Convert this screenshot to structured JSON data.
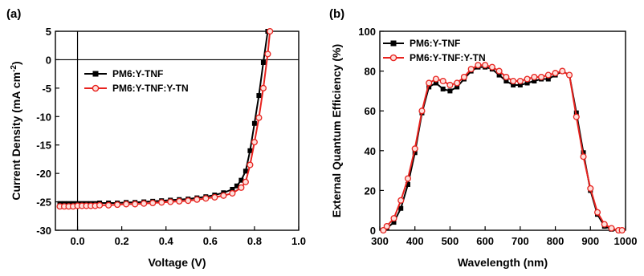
{
  "chart_data": [
    {
      "panel_label": "(a)",
      "type": "line",
      "xlabel": "Voltage (V)",
      "ylabel_parts": [
        "Current Density (mA cm",
        "-2",
        ")"
      ],
      "xlim": [
        -0.1,
        1.0
      ],
      "ylim": [
        -30,
        5
      ],
      "xticks": [
        0.0,
        0.2,
        0.4,
        0.6,
        0.8,
        1.0
      ],
      "xtick_labels": [
        "0.0",
        "0.2",
        "0.4",
        "0.6",
        "0.8",
        "1.0"
      ],
      "yticks": [
        5,
        0,
        -5,
        -10,
        -15,
        -20,
        -25,
        -30
      ],
      "ytick_labels": [
        "5",
        "0",
        "-5",
        "-10",
        "-15",
        "-20",
        "-25",
        "-30"
      ],
      "reference_lines": {
        "x": 0,
        "y": 0
      },
      "legend_position": "upper-left",
      "series": [
        {
          "name": "PM6:Y-TNF",
          "color": "#000000",
          "marker": "filled-square",
          "x": [
            -0.08,
            -0.06,
            -0.04,
            -0.02,
            0.0,
            0.02,
            0.04,
            0.06,
            0.08,
            0.1,
            0.14,
            0.18,
            0.22,
            0.26,
            0.3,
            0.34,
            0.38,
            0.42,
            0.46,
            0.5,
            0.54,
            0.58,
            0.62,
            0.66,
            0.7,
            0.72,
            0.74,
            0.76,
            0.78,
            0.8,
            0.82,
            0.84,
            0.86
          ],
          "y": [
            -25.3,
            -25.3,
            -25.3,
            -25.3,
            -25.3,
            -25.3,
            -25.3,
            -25.3,
            -25.3,
            -25.2,
            -25.2,
            -25.2,
            -25.1,
            -25.1,
            -25.0,
            -24.9,
            -24.8,
            -24.7,
            -24.6,
            -24.5,
            -24.3,
            -24.1,
            -23.8,
            -23.4,
            -22.8,
            -22.2,
            -21.2,
            -19.6,
            -16.0,
            -11.2,
            -6.3,
            -0.5,
            5.0
          ]
        },
        {
          "name": "PM6:Y-TNF:Y-TN",
          "color": "#e8231f",
          "marker": "open-circle",
          "x": [
            -0.08,
            -0.06,
            -0.04,
            -0.02,
            0.0,
            0.02,
            0.04,
            0.06,
            0.08,
            0.1,
            0.14,
            0.18,
            0.22,
            0.26,
            0.3,
            0.34,
            0.38,
            0.42,
            0.46,
            0.5,
            0.54,
            0.58,
            0.62,
            0.66,
            0.7,
            0.74,
            0.76,
            0.78,
            0.8,
            0.82,
            0.84,
            0.86,
            0.87
          ],
          "y": [
            -25.8,
            -25.8,
            -25.8,
            -25.8,
            -25.7,
            -25.7,
            -25.7,
            -25.7,
            -25.7,
            -25.6,
            -25.6,
            -25.5,
            -25.4,
            -25.4,
            -25.3,
            -25.2,
            -25.1,
            -25.0,
            -24.9,
            -24.8,
            -24.6,
            -24.4,
            -24.2,
            -23.9,
            -23.5,
            -22.5,
            -21.5,
            -18.5,
            -14.5,
            -10.2,
            -5.0,
            1.0,
            5.0
          ]
        }
      ]
    },
    {
      "panel_label": "(b)",
      "type": "line",
      "xlabel": "Wavelength (nm)",
      "ylabel": "External Quantum Efficiency (%)",
      "xlim": [
        300,
        1000
      ],
      "ylim": [
        0,
        100
      ],
      "xticks": [
        300,
        400,
        500,
        600,
        700,
        800,
        900,
        1000
      ],
      "xtick_labels": [
        "300",
        "400",
        "500",
        "600",
        "700",
        "800",
        "900",
        "1000"
      ],
      "yticks": [
        0,
        20,
        40,
        60,
        80,
        100
      ],
      "ytick_labels": [
        "0",
        "20",
        "40",
        "60",
        "80",
        "100"
      ],
      "legend_position": "upper-left",
      "series": [
        {
          "name": "PM6:Y-TNF",
          "color": "#000000",
          "marker": "filled-square",
          "x": [
            310,
            320,
            340,
            360,
            380,
            400,
            420,
            440,
            460,
            480,
            500,
            520,
            540,
            560,
            580,
            600,
            620,
            640,
            660,
            680,
            700,
            720,
            740,
            760,
            780,
            800,
            820,
            840,
            860,
            880,
            900,
            920,
            940,
            960,
            980,
            990
          ],
          "y": [
            0,
            1,
            4,
            11,
            23,
            39,
            59,
            72,
            74,
            71,
            70,
            72,
            76,
            80,
            82,
            82,
            81,
            78,
            75,
            73,
            73,
            74,
            75,
            76,
            76,
            78,
            80,
            78,
            59,
            39,
            20,
            8,
            2,
            0.5,
            0,
            0
          ]
        },
        {
          "name": "PM6:Y-TNF:Y-TN",
          "color": "#e8231f",
          "marker": "open-circle",
          "x": [
            310,
            320,
            340,
            360,
            380,
            400,
            420,
            440,
            460,
            480,
            500,
            520,
            540,
            560,
            580,
            600,
            620,
            640,
            660,
            680,
            700,
            720,
            740,
            760,
            780,
            800,
            820,
            840,
            860,
            880,
            900,
            920,
            940,
            960,
            980,
            990
          ],
          "y": [
            0,
            2,
            6,
            15,
            26,
            41,
            60,
            74,
            76,
            75,
            73,
            74,
            77,
            81,
            83,
            83,
            82,
            80,
            77,
            75,
            75,
            76,
            77,
            77,
            78,
            79,
            80,
            78,
            57,
            37,
            21,
            9,
            3,
            1,
            0,
            0
          ]
        }
      ]
    }
  ]
}
